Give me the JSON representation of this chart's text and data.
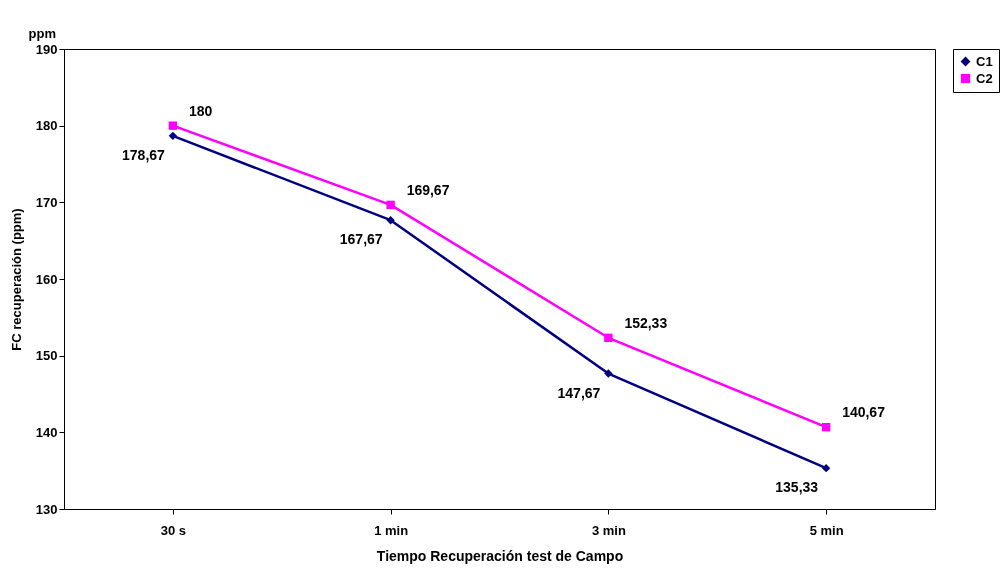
{
  "chart_data": {
    "type": "line",
    "xlabel": "Tiempo Recuperación test de Campo",
    "ylabel": "FC recuperación  (ppm)",
    "annotations": [
      "ppm"
    ],
    "categories": [
      "30 s",
      "1 min",
      "3 min",
      "5 min"
    ],
    "series": [
      {
        "name": "C1",
        "color": "#000080",
        "marker": "diamond",
        "values": [
          178.67,
          167.67,
          147.67,
          135.33
        ],
        "value_labels": [
          "178,67",
          "167,67",
          "147,67",
          "135,33"
        ]
      },
      {
        "name": "C2",
        "color": "#ff00ff",
        "marker": "square",
        "values": [
          180,
          169.67,
          152.33,
          140.67
        ],
        "value_labels": [
          "180",
          "169,67",
          "152,33",
          "140,67"
        ]
      }
    ],
    "ylim": [
      130,
      190
    ],
    "yticks": [
      130,
      140,
      150,
      160,
      170,
      180,
      190
    ],
    "grid": false,
    "legend": "right"
  }
}
